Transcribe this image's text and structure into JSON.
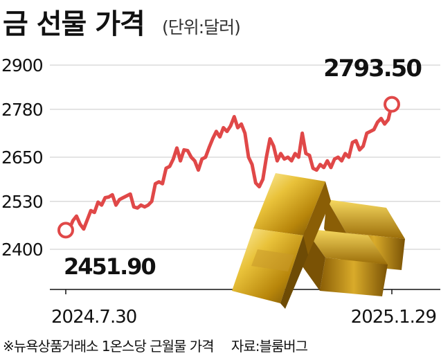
{
  "header": {
    "title": "금 선물 가격",
    "unit": "(단위:달러)"
  },
  "footnote": {
    "note": "※뉴욕상품거래소 1온스당 근월물 가격",
    "source": "자료:블룸버그"
  },
  "colors": {
    "line": "#e04848",
    "grid": "#c8c8c8",
    "text": "#111111"
  },
  "image": "gold-bars-illustration",
  "chart_data": {
    "type": "line",
    "title": "금 선물 가격",
    "ylabel": "(단위:달러)",
    "ylim": [
      2400,
      2900
    ],
    "yticks": [
      2400,
      2530,
      2650,
      2780,
      2900
    ],
    "grid": "horizontal",
    "x_labels": [
      "2024.7.30",
      "2025.1.29"
    ],
    "start_label": "2451.90",
    "end_label": "2793.50",
    "series": [
      {
        "values": [
          2451.9,
          2455,
          2478,
          2490,
          2468,
          2455,
          2480,
          2505,
          2500,
          2528,
          2520,
          2540,
          2542,
          2548,
          2520,
          2535,
          2540,
          2545,
          2550,
          2515,
          2512,
          2520,
          2515,
          2520,
          2530,
          2578,
          2583,
          2578,
          2620,
          2625,
          2645,
          2675,
          2640,
          2670,
          2668,
          2650,
          2640,
          2615,
          2645,
          2650,
          2676,
          2700,
          2720,
          2705,
          2730,
          2720,
          2735,
          2760,
          2730,
          2740,
          2715,
          2650,
          2630,
          2580,
          2570,
          2590,
          2650,
          2700,
          2680,
          2640,
          2660,
          2645,
          2650,
          2640,
          2660,
          2650,
          2715,
          2660,
          2655,
          2620,
          2615,
          2630,
          2622,
          2640,
          2622,
          2645,
          2650,
          2640,
          2660,
          2650,
          2690,
          2695,
          2670,
          2680,
          2715,
          2720,
          2725,
          2745,
          2755,
          2740,
          2752,
          2793.5
        ]
      }
    ]
  }
}
